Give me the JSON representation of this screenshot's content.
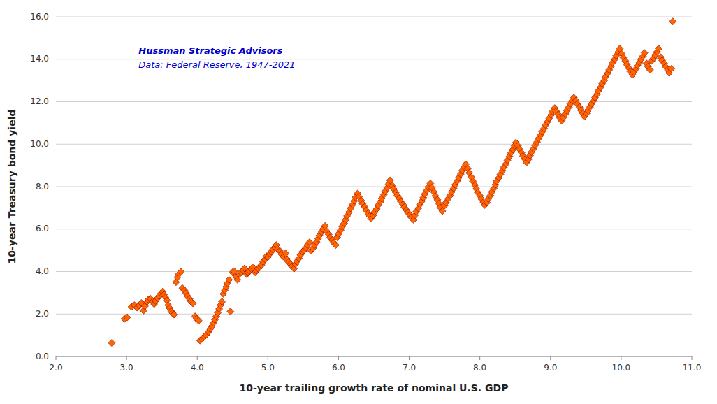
{
  "chart_data": {
    "type": "scatter",
    "xlabel": "10-year trailing growth rate of nominal U.S. GDP",
    "ylabel": "10-year Treasury bond yield",
    "annotations": [
      "Hussman Strategic Advisors",
      "Data: Federal Reserve, 1947-2021"
    ],
    "color": "#FF6600",
    "marker": "diamond",
    "grid": true,
    "xlim": [
      2.0,
      11.0
    ],
    "ylim": [
      0.0,
      16.0
    ],
    "xticks": [
      {
        "value": 2.0,
        "label": "2.0"
      },
      {
        "value": 3.0,
        "label": "3.0"
      },
      {
        "value": 4.0,
        "label": "4.0"
      },
      {
        "value": 5.0,
        "label": "5.0"
      },
      {
        "value": 6.0,
        "label": "6.0"
      },
      {
        "value": 7.0,
        "label": "7.0"
      },
      {
        "value": 8.0,
        "label": "8.0"
      },
      {
        "value": 9.0,
        "label": "9.0"
      },
      {
        "value": 10.0,
        "label": "10.0"
      },
      {
        "value": 11.0,
        "label": "11.0"
      }
    ],
    "yticks": [
      {
        "value": 0.0,
        "label": "0.0"
      },
      {
        "value": 2.0,
        "label": "2.0"
      },
      {
        "value": 4.0,
        "label": "4.0"
      },
      {
        "value": 6.0,
        "label": "6.0"
      },
      {
        "value": 8.0,
        "label": "8.0"
      },
      {
        "value": 10.0,
        "label": "10.0"
      },
      {
        "value": 12.0,
        "label": "12.0"
      },
      {
        "value": 14.0,
        "label": "14.0"
      },
      {
        "value": 16.0,
        "label": "16.0"
      }
    ],
    "x": [
      2.79,
      2.97,
      3.01,
      3.07,
      3.11,
      3.15,
      3.18,
      3.21,
      3.24,
      3.26,
      3.29,
      3.31,
      3.34,
      3.37,
      3.39,
      3.41,
      3.44,
      3.46,
      3.49,
      3.51,
      3.53,
      3.55,
      3.57,
      3.59,
      3.61,
      3.63,
      3.65,
      3.67,
      3.7,
      3.72,
      3.74,
      3.77,
      3.79,
      3.82,
      3.84,
      3.86,
      3.89,
      3.91,
      3.94,
      3.97,
      3.99,
      4.02,
      4.04,
      4.07,
      4.1,
      4.13,
      4.16,
      4.18,
      4.21,
      4.23,
      4.25,
      4.27,
      4.29,
      4.31,
      4.33,
      4.35,
      4.37,
      4.39,
      4.41,
      4.43,
      4.45,
      4.47,
      4.5,
      4.52,
      4.55,
      4.57,
      4.6,
      4.62,
      4.65,
      4.67,
      4.7,
      4.72,
      4.74,
      4.77,
      4.79,
      4.82,
      4.84,
      4.86,
      4.89,
      4.91,
      4.93,
      4.96,
      4.98,
      5.0,
      5.03,
      5.05,
      5.07,
      5.1,
      5.12,
      5.14,
      5.17,
      5.19,
      5.22,
      5.25,
      5.27,
      5.29,
      5.32,
      5.34,
      5.37,
      5.39,
      5.41,
      5.44,
      5.46,
      5.49,
      5.51,
      5.54,
      5.56,
      5.59,
      5.61,
      5.64,
      5.66,
      5.69,
      5.71,
      5.73,
      5.76,
      5.78,
      5.81,
      5.83,
      5.86,
      5.88,
      5.91,
      5.93,
      5.96,
      5.98,
      6.0,
      6.03,
      6.05,
      6.08,
      6.1,
      6.12,
      6.15,
      6.17,
      6.2,
      6.22,
      6.24,
      6.27,
      6.29,
      6.32,
      6.34,
      6.37,
      6.39,
      6.42,
      6.44,
      6.46,
      6.49,
      6.51,
      6.54,
      6.56,
      6.59,
      6.61,
      6.64,
      6.66,
      6.69,
      6.71,
      6.73,
      6.76,
      6.78,
      6.81,
      6.83,
      6.86,
      6.88,
      6.91,
      6.93,
      6.96,
      6.98,
      7.01,
      7.03,
      7.06,
      7.08,
      7.1,
      7.13,
      7.15,
      7.18,
      7.2,
      7.22,
      7.25,
      7.27,
      7.3,
      7.32,
      7.35,
      7.37,
      7.4,
      7.42,
      7.44,
      7.47,
      7.5,
      7.52,
      7.55,
      7.58,
      7.6,
      7.63,
      7.65,
      7.68,
      7.7,
      7.73,
      7.75,
      7.78,
      7.8,
      7.83,
      7.85,
      7.88,
      7.9,
      7.93,
      7.95,
      7.97,
      8.0,
      8.02,
      8.05,
      8.07,
      8.1,
      8.12,
      8.15,
      8.17,
      8.2,
      8.22,
      8.24,
      8.27,
      8.29,
      8.32,
      8.34,
      8.37,
      8.39,
      8.42,
      8.44,
      8.47,
      8.49,
      8.51,
      8.54,
      8.56,
      8.59,
      8.61,
      8.64,
      8.66,
      8.69,
      8.71,
      8.73,
      8.76,
      8.78,
      8.81,
      8.83,
      8.86,
      8.88,
      8.91,
      8.93,
      8.96,
      8.98,
      9.01,
      9.03,
      9.06,
      9.08,
      9.11,
      9.13,
      9.16,
      9.18,
      9.21,
      9.23,
      9.26,
      9.28,
      9.31,
      9.33,
      9.36,
      9.38,
      9.41,
      9.43,
      9.46,
      9.48,
      9.51,
      9.53,
      9.56,
      9.58,
      9.61,
      9.63,
      9.66,
      9.68,
      9.71,
      9.73,
      9.76,
      9.78,
      9.81,
      9.83,
      9.86,
      9.88,
      9.91,
      9.93,
      9.96,
      9.98,
      10.01,
      10.03,
      10.06,
      10.08,
      10.11,
      10.13,
      10.16,
      10.18,
      10.21,
      10.23,
      10.26,
      10.28,
      10.31,
      10.33,
      10.36,
      10.38,
      10.41,
      10.43,
      10.46,
      10.48,
      10.51,
      10.53,
      10.56,
      10.58,
      10.61,
      10.63,
      10.66,
      10.68,
      10.71,
      10.73
    ],
    "values": [
      0.64,
      1.77,
      1.84,
      2.34,
      2.42,
      2.3,
      2.41,
      2.52,
      2.16,
      2.37,
      2.58,
      2.68,
      2.72,
      2.59,
      2.47,
      2.62,
      2.75,
      2.85,
      2.97,
      3.05,
      2.92,
      2.78,
      2.64,
      2.42,
      2.28,
      2.14,
      2.05,
      1.97,
      3.5,
      3.73,
      3.88,
      3.98,
      3.22,
      3.11,
      2.98,
      2.85,
      2.72,
      2.6,
      2.5,
      1.89,
      1.78,
      1.69,
      0.75,
      0.84,
      0.93,
      1.03,
      1.15,
      1.29,
      1.43,
      1.58,
      1.73,
      1.89,
      2.06,
      2.24,
      2.42,
      2.58,
      2.95,
      3.12,
      3.28,
      3.45,
      3.61,
      2.12,
      3.96,
      4.02,
      3.75,
      3.61,
      3.89,
      3.97,
      4.06,
      4.15,
      3.87,
      3.95,
      4.04,
      4.12,
      4.21,
      3.96,
      4.05,
      4.14,
      4.22,
      4.31,
      4.46,
      4.58,
      4.72,
      4.68,
      4.84,
      4.94,
      5.04,
      5.15,
      5.25,
      5.05,
      4.97,
      4.82,
      4.7,
      4.85,
      4.59,
      4.46,
      4.35,
      4.24,
      4.14,
      4.35,
      4.48,
      4.62,
      4.78,
      4.94,
      5.0,
      5.12,
      5.25,
      5.38,
      4.98,
      5.1,
      5.25,
      5.39,
      5.55,
      5.7,
      5.86,
      6.0,
      6.15,
      5.9,
      5.75,
      5.6,
      5.48,
      5.36,
      5.25,
      5.61,
      5.78,
      5.95,
      6.12,
      6.27,
      6.44,
      6.62,
      6.8,
      6.98,
      7.15,
      7.32,
      7.5,
      7.68,
      7.52,
      7.35,
      7.19,
      7.04,
      6.89,
      6.75,
      6.62,
      6.5,
      6.65,
      6.8,
      6.95,
      7.12,
      7.28,
      7.44,
      7.62,
      7.78,
      7.95,
      8.12,
      8.3,
      8.05,
      7.89,
      7.73,
      7.58,
      7.44,
      7.3,
      7.16,
      7.03,
      6.9,
      6.78,
      6.66,
      6.55,
      6.44,
      6.65,
      6.82,
      6.98,
      7.15,
      7.32,
      7.48,
      7.65,
      7.82,
      7.98,
      8.15,
      7.95,
      7.75,
      7.56,
      7.38,
      7.2,
      7.02,
      6.85,
      7.1,
      7.25,
      7.42,
      7.58,
      7.75,
      7.92,
      8.09,
      8.26,
      8.42,
      8.59,
      8.76,
      8.92,
      9.05,
      8.85,
      8.65,
      8.45,
      8.26,
      8.07,
      7.9,
      7.73,
      7.57,
      7.42,
      7.27,
      7.13,
      7.25,
      7.42,
      7.58,
      7.75,
      7.92,
      8.09,
      8.26,
      8.42,
      8.58,
      8.75,
      8.91,
      9.07,
      9.24,
      9.42,
      9.59,
      9.75,
      9.92,
      10.07,
      9.92,
      9.76,
      9.6,
      9.44,
      9.29,
      9.14,
      9.29,
      9.46,
      9.62,
      9.78,
      9.94,
      10.1,
      10.26,
      10.42,
      10.58,
      10.74,
      10.9,
      11.06,
      11.22,
      11.38,
      11.54,
      11.7,
      11.55,
      11.4,
      11.25,
      11.1,
      11.25,
      11.42,
      11.58,
      11.74,
      11.9,
      12.05,
      12.19,
      12.05,
      11.9,
      11.75,
      11.6,
      11.45,
      11.3,
      11.45,
      11.6,
      11.75,
      11.9,
      12.05,
      12.2,
      12.35,
      12.52,
      12.68,
      12.85,
      13.0,
      13.17,
      13.34,
      13.5,
      13.67,
      13.84,
      14.0,
      14.17,
      14.34,
      14.5,
      14.25,
      14.08,
      13.92,
      13.75,
      13.58,
      13.42,
      13.27,
      13.4,
      13.55,
      13.7,
      13.85,
      14.0,
      14.15,
      14.3,
      13.8,
      13.65,
      13.5,
      13.92,
      14.05,
      14.2,
      14.35,
      14.5,
      14.1,
      13.95,
      13.8,
      13.65,
      13.5,
      13.35,
      13.55,
      15.78
    ]
  }
}
